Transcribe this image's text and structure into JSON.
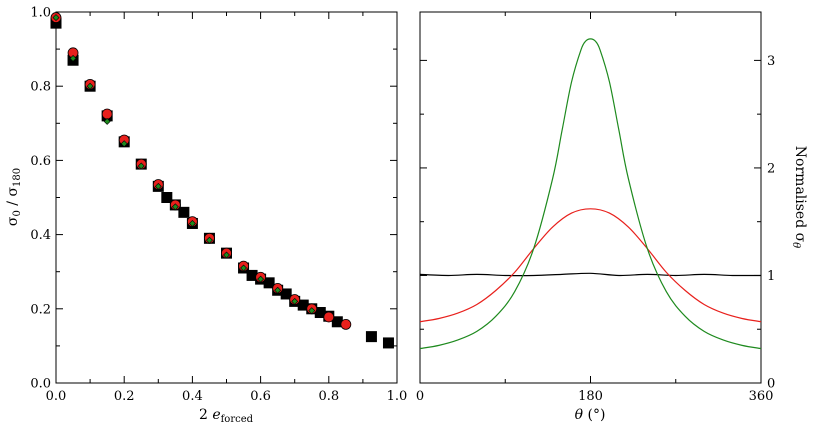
{
  "chart_data": [
    {
      "type": "scatter",
      "xlabel": "2 e_forced",
      "ylabel": "σ0 / σ180",
      "xlim": [
        0,
        1.0
      ],
      "ylim": [
        0,
        1.0
      ],
      "x_ticks": [
        "0.0",
        "0.2",
        "0.4",
        "0.6",
        "0.8",
        "1.0"
      ],
      "y_ticks": [
        "0.0",
        "0.2",
        "0.4",
        "0.6",
        "0.8",
        "1.0"
      ],
      "grid": false,
      "series": [
        {
          "marker": "square",
          "color": "#000000",
          "points": [
            [
              0.0,
              0.97
            ],
            [
              0.05,
              0.87
            ],
            [
              0.1,
              0.8
            ],
            [
              0.15,
              0.72
            ],
            [
              0.2,
              0.65
            ],
            [
              0.25,
              0.59
            ],
            [
              0.3,
              0.53
            ],
            [
              0.325,
              0.5
            ],
            [
              0.35,
              0.48
            ],
            [
              0.375,
              0.46
            ],
            [
              0.4,
              0.43
            ],
            [
              0.45,
              0.39
            ],
            [
              0.5,
              0.35
            ],
            [
              0.55,
              0.31
            ],
            [
              0.575,
              0.29
            ],
            [
              0.6,
              0.28
            ],
            [
              0.625,
              0.27
            ],
            [
              0.65,
              0.25
            ],
            [
              0.675,
              0.24
            ],
            [
              0.7,
              0.22
            ],
            [
              0.725,
              0.21
            ],
            [
              0.75,
              0.2
            ],
            [
              0.775,
              0.19
            ],
            [
              0.8,
              0.18
            ],
            [
              0.825,
              0.165
            ],
            [
              0.925,
              0.125
            ],
            [
              0.975,
              0.108
            ]
          ]
        },
        {
          "marker": "circle",
          "color": "#e8201c",
          "points": [
            [
              0.0,
              0.985
            ],
            [
              0.05,
              0.89
            ],
            [
              0.1,
              0.805
            ],
            [
              0.15,
              0.725
            ],
            [
              0.2,
              0.655
            ],
            [
              0.25,
              0.59
            ],
            [
              0.3,
              0.535
            ],
            [
              0.35,
              0.48
            ],
            [
              0.4,
              0.435
            ],
            [
              0.45,
              0.39
            ],
            [
              0.5,
              0.35
            ],
            [
              0.55,
              0.315
            ],
            [
              0.6,
              0.285
            ],
            [
              0.65,
              0.255
            ],
            [
              0.7,
              0.225
            ],
            [
              0.75,
              0.2
            ],
            [
              0.8,
              0.178
            ],
            [
              0.85,
              0.158
            ]
          ]
        },
        {
          "marker": "diamond",
          "color": "#1e8a1e",
          "points": [
            [
              0.0,
              0.985
            ],
            [
              0.05,
              0.875
            ],
            [
              0.1,
              0.8
            ],
            [
              0.15,
              0.705
            ],
            [
              0.2,
              0.645
            ],
            [
              0.25,
              0.585
            ],
            [
              0.3,
              0.53
            ],
            [
              0.35,
              0.475
            ],
            [
              0.4,
              0.43
            ],
            [
              0.45,
              0.385
            ],
            [
              0.5,
              0.345
            ],
            [
              0.55,
              0.31
            ],
            [
              0.6,
              0.28
            ],
            [
              0.65,
              0.25
            ],
            [
              0.7,
              0.22
            ],
            [
              0.75,
              0.195
            ]
          ]
        }
      ]
    },
    {
      "type": "line",
      "xlabel": "θ (°)",
      "ylabel": "Normalised σθ",
      "xlim": [
        0,
        360
      ],
      "ylim": [
        0,
        3.45
      ],
      "x_ticks": [
        "0",
        "180",
        "360"
      ],
      "y_ticks": [
        "0",
        "1",
        "2",
        "3"
      ],
      "y_axis_side": "right",
      "grid": false,
      "series": [
        {
          "color": "#000000",
          "x": [
            0,
            30,
            60,
            90,
            120,
            150,
            180,
            210,
            240,
            270,
            300,
            330,
            360
          ],
          "y": [
            1.01,
            1.0,
            1.01,
            1.0,
            1.0,
            1.01,
            1.02,
            1.0,
            1.01,
            1.0,
            1.01,
            1.0,
            1.0
          ]
        },
        {
          "color": "#e8201c",
          "x": [
            0,
            20,
            40,
            60,
            80,
            100,
            120,
            140,
            160,
            180,
            200,
            220,
            240,
            260,
            280,
            300,
            320,
            340,
            360
          ],
          "y": [
            0.57,
            0.6,
            0.65,
            0.73,
            0.86,
            1.03,
            1.25,
            1.45,
            1.58,
            1.62,
            1.58,
            1.45,
            1.25,
            1.03,
            0.86,
            0.73,
            0.65,
            0.6,
            0.57
          ]
        },
        {
          "color": "#1e8a1e",
          "x": [
            0,
            20,
            40,
            60,
            80,
            100,
            120,
            140,
            150,
            160,
            170,
            175,
            180,
            185,
            190,
            200,
            210,
            220,
            240,
            260,
            280,
            300,
            320,
            340,
            360
          ],
          "y": [
            0.32,
            0.35,
            0.4,
            0.48,
            0.62,
            0.85,
            1.25,
            1.9,
            2.35,
            2.8,
            3.1,
            3.18,
            3.2,
            3.18,
            3.1,
            2.8,
            2.35,
            1.9,
            1.25,
            0.85,
            0.62,
            0.48,
            0.4,
            0.35,
            0.32
          ]
        }
      ]
    }
  ]
}
